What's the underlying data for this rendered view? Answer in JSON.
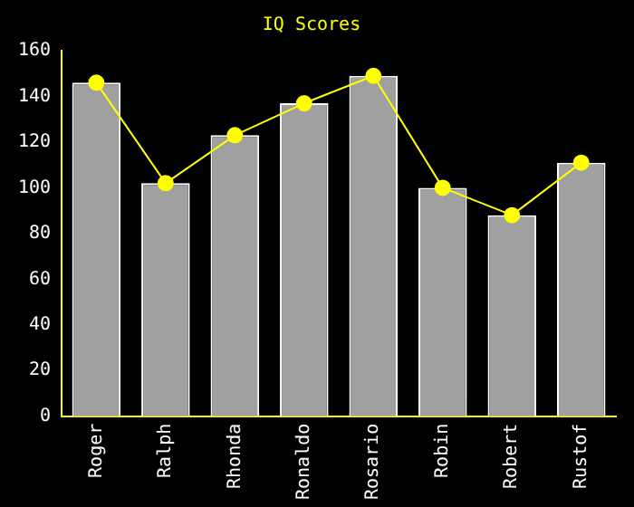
{
  "chart_data": {
    "type": "bar",
    "title": "IQ Scores",
    "categories": [
      "Roger",
      "Ralph",
      "Rhonda",
      "Ronaldo",
      "Rosario",
      "Robin",
      "Robert",
      "Rustof"
    ],
    "series": [
      {
        "color": "#a0a0a0",
        "values": [
          146,
          102,
          123,
          137,
          149,
          100,
          88,
          111
        ]
      },
      {
        "type": "line",
        "color": "#ffff00",
        "values": [
          146,
          102,
          123,
          137,
          149,
          100,
          88,
          111
        ]
      }
    ],
    "ylim": [
      0,
      160
    ],
    "yticks": [
      0,
      20,
      40,
      60,
      80,
      100,
      120,
      140,
      160
    ],
    "grid": false,
    "legend": false,
    "marker": "circle",
    "line_style": "solid"
  }
}
